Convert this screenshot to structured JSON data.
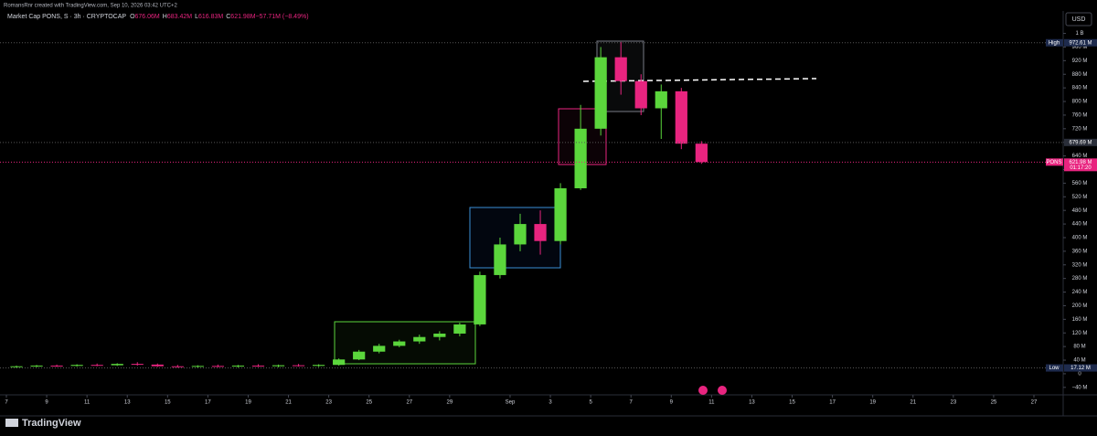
{
  "header": "RomansRnr created with TradingView.com, Sep 10, 2026 03:42 UTC+2",
  "brand": "TradingView",
  "currency": "USD",
  "chart_data": {
    "type": "candlestick",
    "title": "Market Cap PONS, S · 3h · CRYPTOCAP",
    "ohlc_legend": [
      {
        "key": "O",
        "text": "676.06M"
      },
      {
        "key": "H",
        "text": "683.42M"
      },
      {
        "key": "L",
        "text": "616.83M"
      },
      {
        "key": "C",
        "text": "621.98M"
      },
      {
        "key": "",
        "text": "−57.71M (−8.49%)"
      }
    ],
    "x": [
      "Aug 7",
      "Aug 8",
      "Aug 9",
      "Aug 10",
      "Aug 11",
      "Aug 12",
      "Aug 13",
      "Aug 14",
      "Aug 15",
      "Aug 16",
      "Aug 17",
      "Aug 18",
      "Aug 19",
      "Aug 20",
      "Aug 21",
      "Aug 22",
      "Aug 23",
      "Aug 24",
      "Aug 25",
      "Aug 26",
      "Aug 27",
      "Aug 28",
      "Aug 29",
      "Aug 30",
      "Aug 31",
      "Sep 1",
      "Sep 2",
      "Sep 3",
      "Sep 4",
      "Sep 5",
      "Sep 6",
      "Sep 7",
      "Sep 8",
      "Sep 9",
      "Sep 10"
    ],
    "open": [
      20,
      22,
      24,
      23,
      26,
      25,
      29,
      27,
      22,
      21,
      23,
      22,
      24,
      22,
      25,
      23,
      26,
      42,
      65,
      82,
      95,
      108,
      118,
      145,
      290,
      380,
      440,
      390,
      545,
      720,
      930,
      860,
      780,
      830,
      676.06
    ],
    "high": [
      24,
      26,
      27,
      28,
      30,
      31,
      34,
      30,
      26,
      25,
      27,
      26,
      28,
      27,
      29,
      28,
      45,
      70,
      88,
      100,
      115,
      125,
      150,
      300,
      400,
      470,
      480,
      560,
      790,
      960,
      975,
      880,
      850,
      840,
      683.42
    ],
    "low": [
      17.12,
      19,
      20,
      21,
      22,
      23,
      24,
      20,
      18,
      18,
      19,
      18,
      20,
      19,
      21,
      20,
      24,
      40,
      60,
      78,
      88,
      98,
      110,
      140,
      280,
      360,
      350,
      380,
      540,
      700,
      820,
      760,
      690,
      660,
      616.83
    ],
    "close": [
      22,
      24,
      23,
      26,
      25,
      29,
      27,
      22,
      21,
      23,
      22,
      24,
      22,
      25,
      23,
      26,
      42,
      65,
      82,
      95,
      108,
      118,
      145,
      290,
      380,
      440,
      390,
      545,
      720,
      930,
      860,
      780,
      830,
      676.06,
      621.98
    ],
    "up_color": "#5bd63c",
    "down_color": "#e8247f",
    "xlim": [
      "Aug 7",
      "Sep 27"
    ],
    "xticks": [
      {
        "value": "Aug 7",
        "label": "7"
      },
      {
        "value": "Aug 9",
        "label": "9"
      },
      {
        "value": "Aug 11",
        "label": "11"
      },
      {
        "value": "Aug 13",
        "label": "13"
      },
      {
        "value": "Aug 15",
        "label": "15"
      },
      {
        "value": "Aug 17",
        "label": "17"
      },
      {
        "value": "Aug 19",
        "label": "19"
      },
      {
        "value": "Aug 21",
        "label": "21"
      },
      {
        "value": "Aug 23",
        "label": "23"
      },
      {
        "value": "Aug 25",
        "label": "25"
      },
      {
        "value": "Aug 27",
        "label": "27"
      },
      {
        "value": "Aug 29",
        "label": "29"
      },
      {
        "value": "Sep 1",
        "label": "Sep"
      },
      {
        "value": "Sep 3",
        "label": "3"
      },
      {
        "value": "Sep 5",
        "label": "5"
      },
      {
        "value": "Sep 7",
        "label": "7"
      },
      {
        "value": "Sep 9",
        "label": "9"
      },
      {
        "value": "Sep 11",
        "label": "11"
      },
      {
        "value": "Sep 13",
        "label": "13"
      },
      {
        "value": "Sep 15",
        "label": "15"
      },
      {
        "value": "Sep 17",
        "label": "17"
      },
      {
        "value": "Sep 19",
        "label": "19"
      },
      {
        "value": "Sep 21",
        "label": "21"
      },
      {
        "value": "Sep 23",
        "label": "23"
      },
      {
        "value": "Sep 25",
        "label": "25"
      },
      {
        "value": "Sep 27",
        "label": "27"
      }
    ],
    "ylim": [
      -62,
      1023
    ],
    "yticks": [
      {
        "value": 1000,
        "label": "1 B"
      },
      {
        "value": 960,
        "label": "960 M"
      },
      {
        "value": 920,
        "label": "920 M"
      },
      {
        "value": 880,
        "label": "880 M"
      },
      {
        "value": 840,
        "label": "840 M"
      },
      {
        "value": 800,
        "label": "800 M"
      },
      {
        "value": 760,
        "label": "760 M"
      },
      {
        "value": 720,
        "label": "720 M"
      },
      {
        "value": 680,
        "label": "680 M"
      },
      {
        "value": 640,
        "label": "640 M"
      },
      {
        "value": 600,
        "label": "600 M"
      },
      {
        "value": 560,
        "label": "560 M"
      },
      {
        "value": 520,
        "label": "520 M"
      },
      {
        "value": 480,
        "label": "480 M"
      },
      {
        "value": 440,
        "label": "440 M"
      },
      {
        "value": 400,
        "label": "400 M"
      },
      {
        "value": 360,
        "label": "360 M"
      },
      {
        "value": 320,
        "label": "320 M"
      },
      {
        "value": 280,
        "label": "280 M"
      },
      {
        "value": 240,
        "label": "240 M"
      },
      {
        "value": 200,
        "label": "200 M"
      },
      {
        "value": 160,
        "label": "160 M"
      },
      {
        "value": 120,
        "label": "120 M"
      },
      {
        "value": 80,
        "label": "80 M"
      },
      {
        "value": 40,
        "label": "40 M"
      },
      0,
      {
        "value": -40,
        "label": "−40 M"
      }
    ],
    "price_lines": [
      {
        "name": "High",
        "value": 972.61,
        "value_label": "972.61 M",
        "color": "#1e2b4d"
      },
      {
        "value": 679.69,
        "value_label": "679.69 M",
        "color": "#2a2e39"
      },
      {
        "name": "PONS",
        "value": 621.98,
        "value_label": "621.98 M",
        "countdown": "01:17:20",
        "color": "#e8247f"
      },
      {
        "name": "Low",
        "value": 17.12,
        "value_label": "17.12 M",
        "color": "#1e2b4d"
      }
    ]
  }
}
